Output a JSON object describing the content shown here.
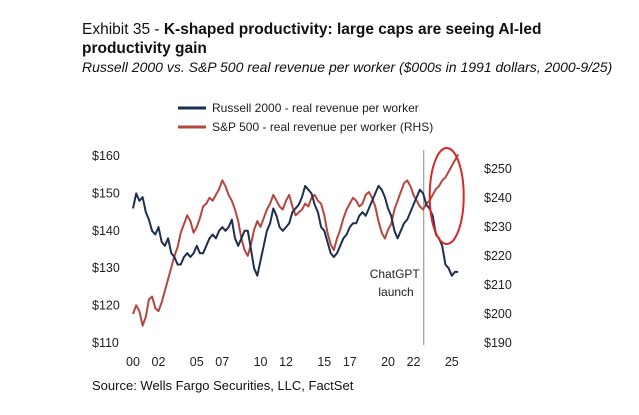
{
  "header": {
    "exhibit": "Exhibit 35 - ",
    "title": "K-shaped productivity: large caps are seeing AI-led productivity gain",
    "subtitle": "Russell 2000 vs. S&P 500 real revenue per worker ($000s in 1991 dollars, 2000-9/25)"
  },
  "source": "Source: Wells Fargo Securities, LLC, FactSet",
  "colors": {
    "russell": "#1f2f4f",
    "sp500": "#b5473f",
    "circle": "#d62828",
    "vline": "#888888"
  },
  "chart_data": {
    "type": "line",
    "title": "Russell 2000 vs. S&P 500 real revenue per worker",
    "x_ticks": [
      "00",
      "02",
      "05",
      "07",
      "10",
      "12",
      "15",
      "17",
      "20",
      "22",
      "25"
    ],
    "x_range": [
      2000,
      2025.8
    ],
    "left_axis": {
      "ticks": [
        "$110",
        "$120",
        "$130",
        "$140",
        "$150",
        "$160"
      ],
      "ylim": [
        110,
        160
      ]
    },
    "right_axis": {
      "ticks": [
        "$190",
        "$200",
        "$210",
        "$220",
        "$230",
        "$240",
        "$250"
      ],
      "ylim": [
        190,
        252
      ]
    },
    "legend": [
      "Russell 2000 - real revenue per worker",
      "S&P 500 - real revenue per worker (RHS)"
    ],
    "annotation": {
      "text_line1": "ChatGPT",
      "text_line2": "launch",
      "x": 2022.8
    },
    "series": [
      {
        "name": "Russell 2000 - real revenue per worker",
        "axis": "left",
        "x": [
          2000.0,
          2000.25,
          2000.5,
          2000.75,
          2001.0,
          2001.25,
          2001.5,
          2001.75,
          2002.0,
          2002.25,
          2002.5,
          2002.75,
          2003.0,
          2003.25,
          2003.5,
          2003.75,
          2004.0,
          2004.25,
          2004.5,
          2004.75,
          2005.0,
          2005.25,
          2005.5,
          2005.75,
          2006.0,
          2006.25,
          2006.5,
          2006.75,
          2007.0,
          2007.25,
          2007.5,
          2007.75,
          2008.0,
          2008.25,
          2008.5,
          2008.75,
          2009.0,
          2009.25,
          2009.5,
          2009.75,
          2010.0,
          2010.25,
          2010.5,
          2010.75,
          2011.0,
          2011.25,
          2011.5,
          2011.75,
          2012.0,
          2012.25,
          2012.5,
          2012.75,
          2013.0,
          2013.25,
          2013.5,
          2013.75,
          2014.0,
          2014.25,
          2014.5,
          2014.75,
          2015.0,
          2015.25,
          2015.5,
          2015.75,
          2016.0,
          2016.25,
          2016.5,
          2016.75,
          2017.0,
          2017.25,
          2017.5,
          2017.75,
          2018.0,
          2018.25,
          2018.5,
          2018.75,
          2019.0,
          2019.25,
          2019.5,
          2019.75,
          2020.0,
          2020.25,
          2020.5,
          2020.75,
          2021.0,
          2021.25,
          2021.5,
          2021.75,
          2022.0,
          2022.25,
          2022.5,
          2022.75,
          2023.0,
          2023.25,
          2023.5,
          2023.75,
          2024.0,
          2024.25,
          2024.5,
          2024.75,
          2025.0,
          2025.25,
          2025.5
        ],
        "values": [
          146,
          150,
          148,
          149,
          145,
          143,
          140,
          139,
          141,
          137,
          136,
          138,
          134,
          133,
          131,
          131,
          133,
          134,
          133,
          134,
          136,
          134,
          134,
          136,
          138,
          139,
          138,
          140,
          141,
          140,
          141,
          143,
          138,
          136,
          138,
          140,
          140,
          135,
          130,
          128,
          132,
          136,
          140,
          142,
          146,
          144,
          141,
          140,
          141,
          142,
          145,
          146,
          147,
          149,
          152,
          151,
          150,
          147,
          145,
          141,
          140,
          137,
          134,
          133,
          134,
          136,
          138,
          139,
          141,
          142,
          142,
          144,
          145,
          144,
          146,
          148,
          150,
          152,
          151,
          149,
          146,
          144,
          140,
          138,
          140,
          142,
          143,
          145,
          147,
          149,
          151,
          150,
          147,
          146,
          144,
          139,
          138,
          136,
          131,
          130,
          128,
          129,
          129
        ]
      },
      {
        "name": "S&P 500 - real revenue per worker (RHS)",
        "axis": "right",
        "x": [
          2000.0,
          2000.25,
          2000.5,
          2000.75,
          2001.0,
          2001.25,
          2001.5,
          2001.75,
          2002.0,
          2002.25,
          2002.5,
          2002.75,
          2003.0,
          2003.25,
          2003.5,
          2003.75,
          2004.0,
          2004.25,
          2004.5,
          2004.75,
          2005.0,
          2005.25,
          2005.5,
          2005.75,
          2006.0,
          2006.25,
          2006.5,
          2006.75,
          2007.0,
          2007.25,
          2007.5,
          2007.75,
          2008.0,
          2008.25,
          2008.5,
          2008.75,
          2009.0,
          2009.25,
          2009.5,
          2009.75,
          2010.0,
          2010.25,
          2010.5,
          2010.75,
          2011.0,
          2011.25,
          2011.5,
          2011.75,
          2012.0,
          2012.25,
          2012.5,
          2012.75,
          2013.0,
          2013.25,
          2013.5,
          2013.75,
          2014.0,
          2014.25,
          2014.5,
          2014.75,
          2015.0,
          2015.25,
          2015.5,
          2015.75,
          2016.0,
          2016.25,
          2016.5,
          2016.75,
          2017.0,
          2017.25,
          2017.5,
          2017.75,
          2018.0,
          2018.25,
          2018.5,
          2018.75,
          2019.0,
          2019.25,
          2019.5,
          2019.75,
          2020.0,
          2020.25,
          2020.5,
          2020.75,
          2021.0,
          2021.25,
          2021.5,
          2021.75,
          2022.0,
          2022.25,
          2022.5,
          2022.75,
          2023.0,
          2023.25,
          2023.5,
          2023.75,
          2024.0,
          2024.25,
          2024.5,
          2024.75,
          2025.0,
          2025.25,
          2025.5
        ],
        "values": [
          200,
          203,
          201,
          196,
          199,
          205,
          206,
          202,
          201,
          204,
          208,
          212,
          216,
          220,
          223,
          228,
          231,
          234,
          232,
          228,
          230,
          233,
          237,
          238,
          240,
          239,
          241,
          243,
          246,
          244,
          241,
          239,
          236,
          232,
          226,
          222,
          220,
          224,
          229,
          232,
          230,
          233,
          236,
          238,
          241,
          239,
          237,
          236,
          239,
          241,
          237,
          234,
          235,
          236,
          238,
          237,
          240,
          241,
          239,
          238,
          234,
          228,
          224,
          222,
          226,
          229,
          233,
          236,
          238,
          240,
          239,
          237,
          238,
          241,
          242,
          240,
          237,
          232,
          228,
          226,
          229,
          231,
          236,
          239,
          242,
          245,
          246,
          244,
          241,
          239,
          237,
          236,
          238,
          239,
          241,
          243,
          244,
          246,
          247,
          249,
          251,
          253,
          255
        ]
      }
    ]
  }
}
